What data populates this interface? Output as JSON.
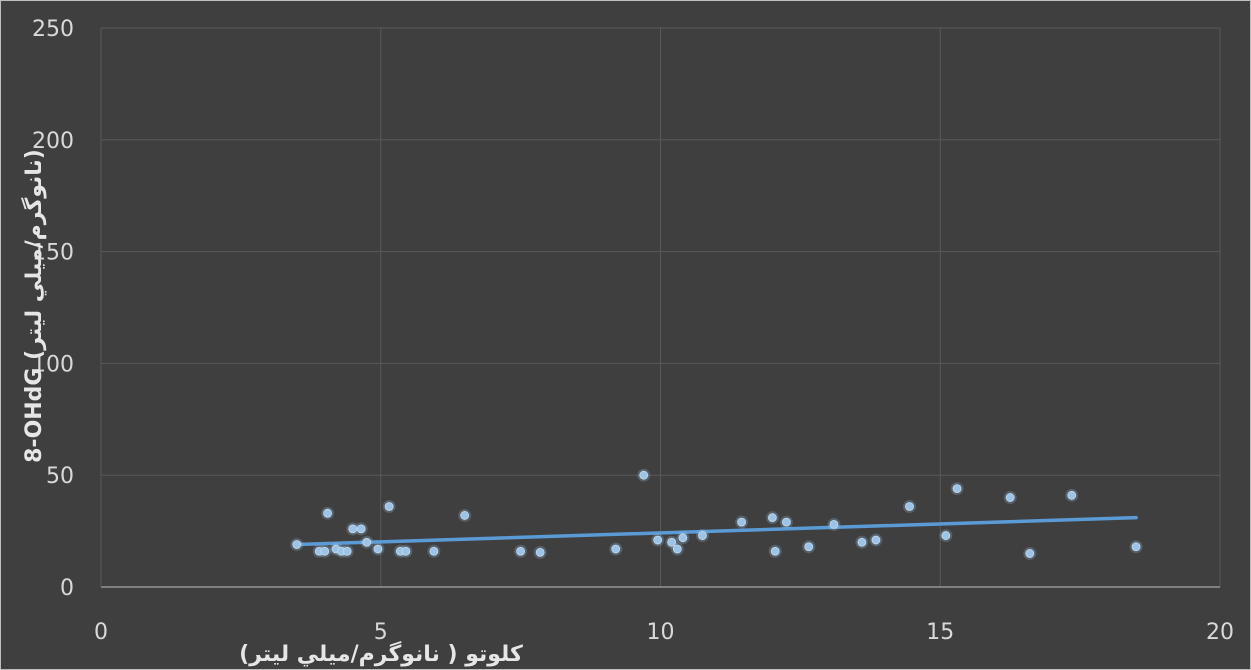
{
  "chart_data": {
    "type": "scatter",
    "title": "",
    "xlabel": "كلوتو ( نانوگرم/ميلي ليتر)",
    "ylabel": "8-OHdG (نانوگرم/ميلي ليتر)",
    "xlim": [
      0,
      20
    ],
    "ylim": [
      0,
      250
    ],
    "x_ticks": [
      0,
      5,
      10,
      15,
      20
    ],
    "y_ticks": [
      0,
      50,
      100,
      150,
      200,
      250
    ],
    "x_tick_labels": [
      "0",
      "5",
      "10",
      "15",
      "20"
    ],
    "y_tick_labels": [
      "0",
      "50",
      "100",
      "150",
      "200",
      "250"
    ],
    "grid": true,
    "legend": "none",
    "series": [
      {
        "color": "#9dc3e6",
        "points": [
          [
            3.5,
            19
          ],
          [
            3.9,
            16
          ],
          [
            4.0,
            16
          ],
          [
            4.05,
            33
          ],
          [
            4.2,
            17
          ],
          [
            4.3,
            16
          ],
          [
            4.4,
            16
          ],
          [
            4.5,
            26
          ],
          [
            4.65,
            26
          ],
          [
            4.75,
            20
          ],
          [
            4.95,
            17
          ],
          [
            5.15,
            36
          ],
          [
            5.35,
            16
          ],
          [
            5.45,
            16
          ],
          [
            5.95,
            16
          ],
          [
            6.5,
            32
          ],
          [
            7.5,
            16
          ],
          [
            7.85,
            15.5
          ],
          [
            9.2,
            17
          ],
          [
            9.7,
            50
          ],
          [
            9.95,
            21
          ],
          [
            10.2,
            20
          ],
          [
            10.3,
            17
          ],
          [
            10.4,
            22
          ],
          [
            10.75,
            23
          ],
          [
            11.45,
            29
          ],
          [
            12.0,
            31
          ],
          [
            12.05,
            16
          ],
          [
            12.25,
            29
          ],
          [
            12.65,
            18
          ],
          [
            13.1,
            28
          ],
          [
            13.6,
            20
          ],
          [
            13.85,
            21
          ],
          [
            14.45,
            36
          ],
          [
            15.1,
            23
          ],
          [
            15.3,
            44
          ],
          [
            16.25,
            40
          ],
          [
            16.6,
            15
          ],
          [
            17.35,
            41
          ],
          [
            18.5,
            18
          ]
        ]
      }
    ],
    "trendline": {
      "type": "linear",
      "color": "#5b9bd5",
      "x": [
        3.5,
        18.5
      ],
      "y": [
        19,
        31
      ]
    }
  }
}
